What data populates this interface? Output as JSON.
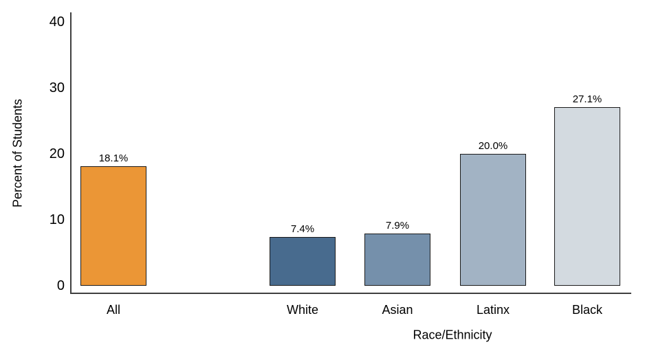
{
  "chart_data": {
    "type": "bar",
    "categories": [
      "All",
      "White",
      "Asian",
      "Latinx",
      "Black"
    ],
    "values": [
      18.1,
      7.4,
      7.9,
      20.0,
      27.1
    ],
    "bar_labels": [
      "18.1%",
      "7.4%",
      "7.9%",
      "20.0%",
      "27.1%"
    ],
    "bar_colors": [
      "#EB9636",
      "#486B8E",
      "#7590AB",
      "#A2B3C4",
      "#D3DAE0"
    ],
    "bar_border_color": "#1a1a1a",
    "axis_color": "#3f3f3f",
    "title": "",
    "xlabel": "Race/Ethnicity",
    "ylabel": "Percent of Students",
    "ylim": [
      0,
      40
    ],
    "yticks": [
      0,
      10,
      20,
      30,
      40
    ],
    "grid": false,
    "legend": "none",
    "background": "#ffffff"
  }
}
